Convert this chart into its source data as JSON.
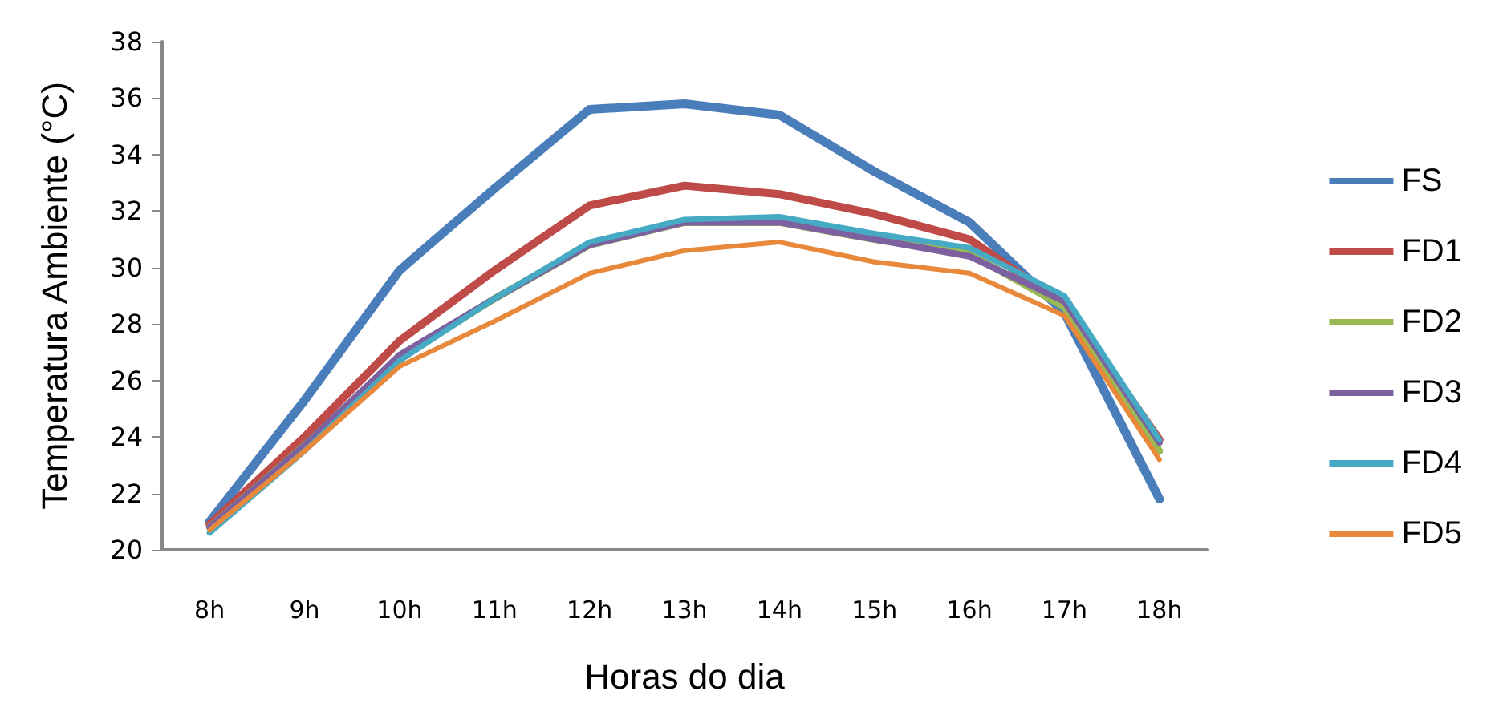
{
  "chart_data": {
    "type": "line",
    "xlabel": "Horas do dia",
    "ylabel": "Temperatura Ambiente (°C)",
    "categories": [
      "8h",
      "9h",
      "10h",
      "11h",
      "12h",
      "13h",
      "14h",
      "15h",
      "16h",
      "17h",
      "18h"
    ],
    "series": [
      {
        "name": "FS",
        "color": "#4a7ebb",
        "values": [
          21.0,
          25.3,
          29.9,
          32.8,
          35.6,
          35.8,
          35.4,
          33.4,
          31.6,
          28.4,
          21.8
        ]
      },
      {
        "name": "FD1",
        "color": "#be4b48",
        "values": [
          20.9,
          24.0,
          27.4,
          29.9,
          32.2,
          32.9,
          32.6,
          31.9,
          31.0,
          28.7,
          23.9
        ]
      },
      {
        "name": "FD2",
        "color": "#98b954",
        "values": [
          20.8,
          23.7,
          26.8,
          28.9,
          30.8,
          31.6,
          31.6,
          31.0,
          30.5,
          28.6,
          23.5
        ]
      },
      {
        "name": "FD3",
        "color": "#7d60a0",
        "values": [
          20.8,
          23.7,
          26.9,
          28.9,
          30.8,
          31.6,
          31.6,
          31.0,
          30.4,
          28.8,
          23.8
        ]
      },
      {
        "name": "FD4",
        "color": "#46aac5",
        "values": [
          20.6,
          23.5,
          26.7,
          28.9,
          30.9,
          31.7,
          31.8,
          31.2,
          30.7,
          29.0,
          23.9
        ]
      },
      {
        "name": "FD5",
        "color": "#e8883a",
        "values": [
          20.7,
          23.5,
          26.5,
          28.1,
          29.8,
          30.6,
          30.9,
          30.2,
          29.8,
          28.3,
          23.2
        ]
      }
    ],
    "ylim": [
      20,
      38
    ],
    "yticks": [
      20,
      22,
      24,
      26,
      28,
      30,
      32,
      34,
      36,
      38
    ],
    "grid": false,
    "legend": "right",
    "marker": "none"
  }
}
